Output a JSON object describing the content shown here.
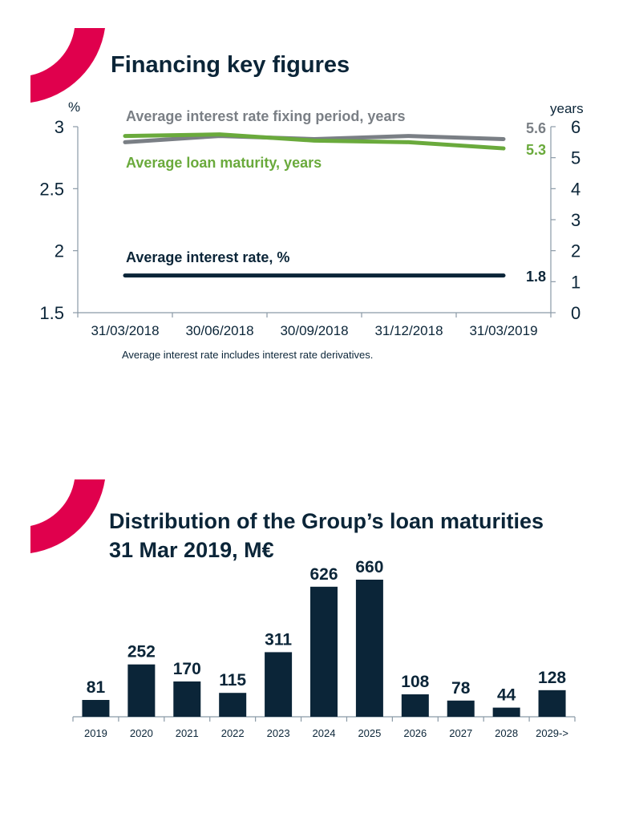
{
  "colors": {
    "navy": "#0b2538",
    "grey": "#7a7f85",
    "green": "#6aaa3c",
    "accent": "#e0004d",
    "axis": "#8a9aa6"
  },
  "section1": {
    "title": "Financing key figures",
    "decoration": "red-arc"
  },
  "section2": {
    "title_line1": "Distribution of the Group’s loan maturities",
    "title_line2": "31 Mar 2019, M€",
    "decoration": "red-arc"
  },
  "chart_data": [
    {
      "type": "line",
      "x": [
        "31/03/2018",
        "30/06/2018",
        "30/09/2018",
        "31/12/2018",
        "31/03/2019"
      ],
      "left_axis": {
        "label": "%",
        "ylim": [
          1.5,
          3
        ],
        "ticks": [
          "1.5",
          "2",
          "2.5",
          "3"
        ]
      },
      "right_axis": {
        "label": "years",
        "ylim": [
          0,
          6
        ],
        "ticks": [
          "0",
          "1",
          "2",
          "3",
          "4",
          "5",
          "6"
        ]
      },
      "series": [
        {
          "name": "Average interest rate fixing period, years",
          "axis": "right",
          "color": "#7a7f85",
          "values": [
            5.5,
            5.7,
            5.6,
            5.7,
            5.6
          ],
          "end_label": "5.6"
        },
        {
          "name": "Average loan maturity, years",
          "axis": "right",
          "color": "#6aaa3c",
          "values": [
            5.7,
            5.75,
            5.55,
            5.5,
            5.3
          ],
          "end_label": "5.3"
        },
        {
          "name": "Average interest rate, %",
          "axis": "left",
          "color": "#0b2538",
          "values": [
            1.8,
            1.8,
            1.8,
            1.8,
            1.8
          ],
          "end_label": "1.8"
        }
      ],
      "footnote": "Average interest rate includes interest rate derivatives.",
      "grid": false
    },
    {
      "type": "bar",
      "categories": [
        "2019",
        "2020",
        "2021",
        "2022",
        "2023",
        "2024",
        "2025",
        "2026",
        "2027",
        "2028",
        "2029->"
      ],
      "values": [
        81,
        252,
        170,
        115,
        311,
        626,
        660,
        108,
        78,
        44,
        128
      ],
      "ylim": [
        0,
        660
      ],
      "color": "#0b2538",
      "grid": false
    }
  ]
}
